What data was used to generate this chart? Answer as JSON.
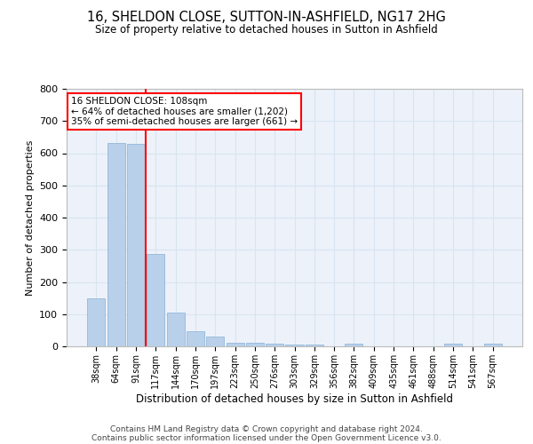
{
  "title_line1": "16, SHELDON CLOSE, SUTTON-IN-ASHFIELD, NG17 2HG",
  "title_line2": "Size of property relative to detached houses in Sutton in Ashfield",
  "xlabel": "Distribution of detached houses by size in Sutton in Ashfield",
  "ylabel": "Number of detached properties",
  "footnote_line1": "Contains HM Land Registry data © Crown copyright and database right 2024.",
  "footnote_line2": "Contains public sector information licensed under the Open Government Licence v3.0.",
  "categories": [
    "38sqm",
    "64sqm",
    "91sqm",
    "117sqm",
    "144sqm",
    "170sqm",
    "197sqm",
    "223sqm",
    "250sqm",
    "276sqm",
    "303sqm",
    "329sqm",
    "356sqm",
    "382sqm",
    "409sqm",
    "435sqm",
    "461sqm",
    "488sqm",
    "514sqm",
    "541sqm",
    "567sqm"
  ],
  "values": [
    150,
    632,
    628,
    288,
    104,
    47,
    30,
    12,
    12,
    8,
    5,
    5,
    0,
    7,
    0,
    0,
    0,
    0,
    7,
    0,
    7
  ],
  "bar_color": "#b8d0ea",
  "bar_edge_color": "#8ab0d4",
  "grid_color": "#d8e4f0",
  "background_color": "#edf2fa",
  "vline_x": 2.5,
  "vline_color": "red",
  "annotation_line1": "16 SHELDON CLOSE: 108sqm",
  "annotation_line2": "← 64% of detached houses are smaller (1,202)",
  "annotation_line3": "35% of semi-detached houses are larger (661) →",
  "annotation_box_color": "white",
  "annotation_box_edge_color": "red",
  "ylim": [
    0,
    800
  ],
  "yticks": [
    0,
    100,
    200,
    300,
    400,
    500,
    600,
    700,
    800
  ]
}
